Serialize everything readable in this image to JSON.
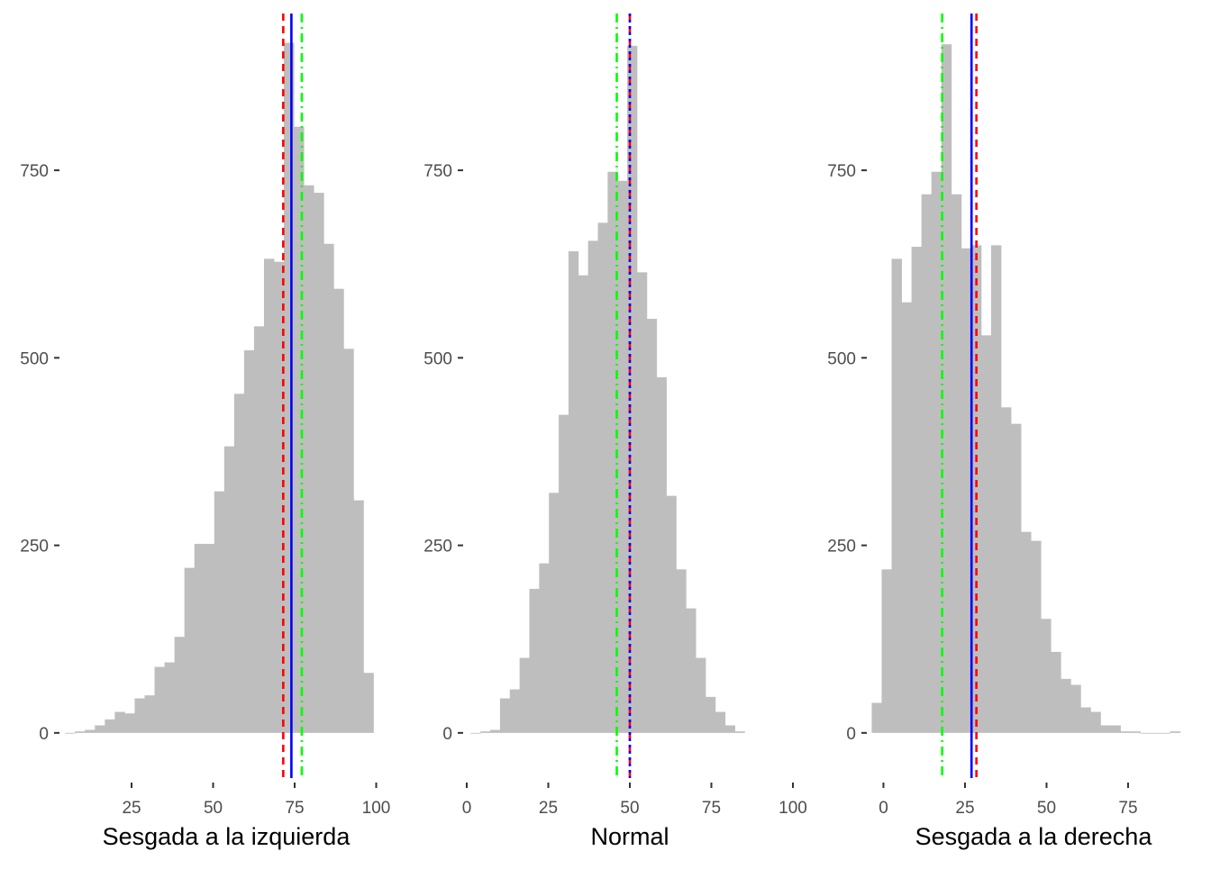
{
  "chart_data": [
    {
      "type": "bar",
      "panel": "left",
      "xlabel": "Sesgada a la izquierda",
      "ylabel": "",
      "title": "",
      "bin_start": 4.6,
      "bin_width": 3.05,
      "counts": [
        0,
        2,
        4,
        10,
        18,
        28,
        26,
        46,
        50,
        88,
        94,
        128,
        220,
        252,
        252,
        322,
        382,
        452,
        510,
        542,
        632,
        628,
        920,
        808,
        730,
        720,
        652,
        592,
        512,
        310,
        80
      ],
      "xlim": [
        4,
        104
      ],
      "xticks": [
        25,
        50,
        75,
        100
      ],
      "ylim": [
        -65,
        965
      ],
      "yticks": [
        0,
        250,
        500,
        750
      ],
      "lines": [
        {
          "name": "mean",
          "value": 71.5,
          "color": "#ff0000",
          "style": "dashed"
        },
        {
          "name": "median",
          "value": 74.0,
          "color": "#0000ff",
          "style": "solid"
        },
        {
          "name": "mode",
          "value": 77.2,
          "color": "#00ff00",
          "style": "dotdash"
        }
      ]
    },
    {
      "type": "bar",
      "panel": "middle",
      "xlabel": "Normal",
      "ylabel": "",
      "title": "",
      "bin_start": 1.2,
      "bin_width": 3.0,
      "counts": [
        0,
        2,
        4,
        46,
        58,
        100,
        192,
        226,
        320,
        424,
        642,
        610,
        656,
        680,
        748,
        736,
        916,
        614,
        552,
        474,
        316,
        218,
        166,
        100,
        48,
        28,
        10,
        2
      ],
      "xlim": [
        0,
        100
      ],
      "xticks": [
        0,
        25,
        50,
        75,
        100
      ],
      "ylim": [
        -65,
        965
      ],
      "yticks": [
        0,
        250,
        500,
        750
      ],
      "lines": [
        {
          "name": "mean",
          "value": 50.0,
          "color": "#ff0000",
          "style": "dashed"
        },
        {
          "name": "median",
          "value": 50.0,
          "color": "#0000ff",
          "style": "dotted"
        },
        {
          "name": "mode",
          "value": 46.0,
          "color": "#00ff00",
          "style": "dotdash"
        }
      ]
    },
    {
      "type": "bar",
      "panel": "right",
      "xlabel": "Sesgada a la derecha",
      "ylabel": "",
      "title": "",
      "bin_start": -3.6,
      "bin_width": 3.05,
      "counts": [
        40,
        218,
        632,
        574,
        648,
        718,
        748,
        918,
        718,
        646,
        650,
        530,
        650,
        434,
        412,
        268,
        256,
        152,
        108,
        72,
        64,
        34,
        28,
        10,
        10,
        2,
        2,
        0,
        0,
        0,
        2
      ],
      "xlim": [
        -4,
        96
      ],
      "xticks": [
        0,
        25,
        50,
        75
      ],
      "ylim": [
        -65,
        965
      ],
      "yticks": [
        0,
        250,
        500,
        750
      ],
      "lines": [
        {
          "name": "mean",
          "value": 28.5,
          "color": "#ff0000",
          "style": "dashed"
        },
        {
          "name": "median",
          "value": 27.0,
          "color": "#0000ff",
          "style": "solid"
        },
        {
          "name": "mode",
          "value": 18.0,
          "color": "#00ff00",
          "style": "dotdash"
        }
      ]
    }
  ],
  "colors": {
    "bars": "#bebebe",
    "tick_label": "#4d4d4d",
    "axis_title": "#000000",
    "tick_mark": "#333333"
  },
  "grid": false,
  "legend": "none"
}
